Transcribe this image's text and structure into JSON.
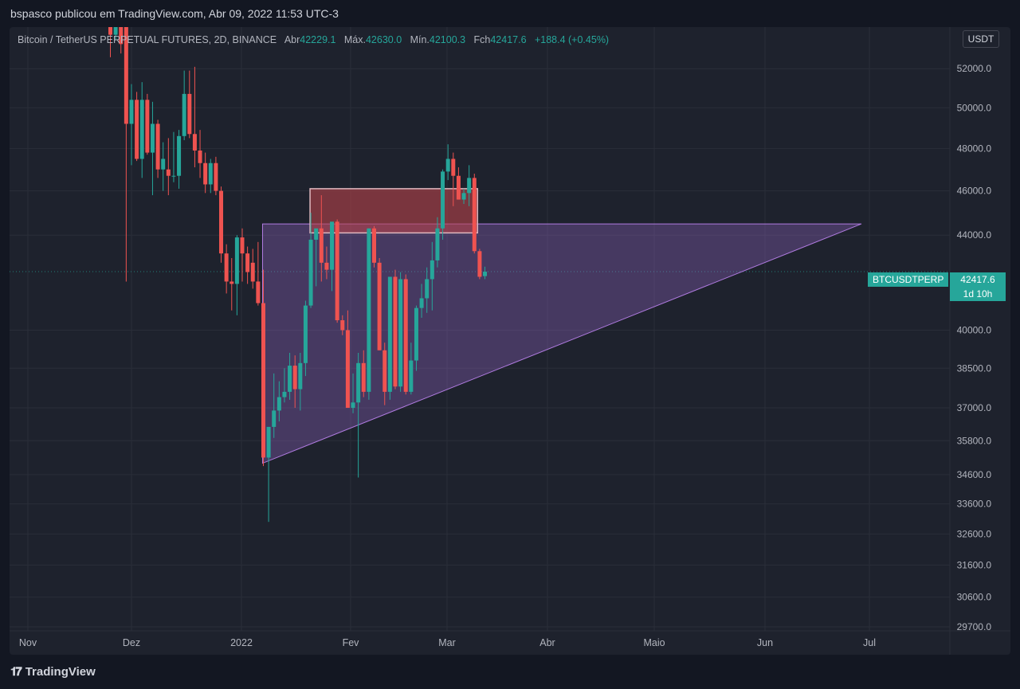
{
  "header": {
    "published": "bspasco publicou em TradingView.com, Abr 09, 2022 11:53 UTC-3"
  },
  "legend": {
    "symbol": "Bitcoin / TetherUS PERPETUAL FUTURES, 2D, BINANCE",
    "open_label": "Abr",
    "open": "42229.1",
    "high_label": "Máx.",
    "high": "42630.0",
    "low_label": "Mín.",
    "low": "42100.3",
    "close_label": "Fch",
    "close": "42417.6",
    "change": "+188.4 (+0.45%)"
  },
  "unit": "USDT",
  "price_tag": {
    "symbol": "BTCUSDTPERP",
    "price": "42417.6",
    "countdown": "1d 10h"
  },
  "footer": {
    "brand": "TradingView",
    "logo_icon": "tradingview-logo-icon"
  },
  "colors": {
    "up": "#26a69a",
    "down": "#ef5350",
    "zone": "#b8424a",
    "triangle": "#9b6bd1",
    "background": "#1e222d"
  },
  "chart_data": {
    "type": "candlestick",
    "timeframe": "2D",
    "x_axis_labels": [
      "Nov",
      "Dez",
      "2022",
      "Fev",
      "Mar",
      "Abr",
      "Maio",
      "Jun",
      "Jul"
    ],
    "y_axis_labels": [
      52000.0,
      50000.0,
      48000.0,
      46000.0,
      44000.0,
      40000.0,
      38500.0,
      37000.0,
      35800.0,
      34600.0,
      33600.0,
      32600.0,
      31600.0,
      30600.0,
      29700.0
    ],
    "y_scale": "log",
    "ylim": [
      29700,
      54000
    ],
    "grid": true,
    "candles": [
      {
        "o": 56500,
        "h": 58500,
        "l": 52600,
        "c": 53800
      },
      {
        "o": 53800,
        "h": 56800,
        "l": 53500,
        "c": 56500
      },
      {
        "o": 56500,
        "h": 59000,
        "l": 52800,
        "c": 53300
      },
      {
        "o": 55800,
        "h": 57000,
        "l": 42000,
        "c": 49200
      },
      {
        "o": 49200,
        "h": 51200,
        "l": 47200,
        "c": 50400
      },
      {
        "o": 50400,
        "h": 50800,
        "l": 47400,
        "c": 47500
      },
      {
        "o": 47500,
        "h": 51300,
        "l": 46600,
        "c": 50400
      },
      {
        "o": 50400,
        "h": 50700,
        "l": 47700,
        "c": 47800
      },
      {
        "o": 47800,
        "h": 50300,
        "l": 45800,
        "c": 49200
      },
      {
        "o": 49200,
        "h": 49400,
        "l": 46600,
        "c": 47000
      },
      {
        "o": 47000,
        "h": 48300,
        "l": 46000,
        "c": 47500
      },
      {
        "o": 47000,
        "h": 48500,
        "l": 45800,
        "c": 46700
      },
      {
        "o": 46700,
        "h": 48800,
        "l": 46400,
        "c": 46700
      },
      {
        "o": 46700,
        "h": 48900,
        "l": 46100,
        "c": 48600
      },
      {
        "o": 48600,
        "h": 51900,
        "l": 48400,
        "c": 50700
      },
      {
        "o": 50700,
        "h": 51900,
        "l": 48500,
        "c": 48700
      },
      {
        "o": 48700,
        "h": 52100,
        "l": 47100,
        "c": 47900
      },
      {
        "o": 47900,
        "h": 48900,
        "l": 46600,
        "c": 47300
      },
      {
        "o": 47300,
        "h": 47800,
        "l": 45900,
        "c": 46300
      },
      {
        "o": 46300,
        "h": 47500,
        "l": 45900,
        "c": 47300
      },
      {
        "o": 47300,
        "h": 47600,
        "l": 45800,
        "c": 46000
      },
      {
        "o": 46000,
        "h": 46200,
        "l": 42800,
        "c": 43200
      },
      {
        "o": 43200,
        "h": 43600,
        "l": 41500,
        "c": 42000
      },
      {
        "o": 42000,
        "h": 43000,
        "l": 40800,
        "c": 41900
      },
      {
        "o": 41900,
        "h": 44000,
        "l": 40600,
        "c": 43900
      },
      {
        "o": 43900,
        "h": 44300,
        "l": 42000,
        "c": 43200
      },
      {
        "o": 43200,
        "h": 43500,
        "l": 41900,
        "c": 42400
      },
      {
        "o": 42800,
        "h": 43400,
        "l": 41700,
        "c": 42000
      },
      {
        "o": 42000,
        "h": 43700,
        "l": 41000,
        "c": 41100
      },
      {
        "o": 41100,
        "h": 42500,
        "l": 34900,
        "c": 35200
      },
      {
        "o": 35200,
        "h": 36300,
        "l": 33000,
        "c": 36300
      },
      {
        "o": 36300,
        "h": 38300,
        "l": 35900,
        "c": 36900
      },
      {
        "o": 36900,
        "h": 38000,
        "l": 36500,
        "c": 37400
      },
      {
        "o": 37400,
        "h": 38500,
        "l": 37200,
        "c": 37600
      },
      {
        "o": 37600,
        "h": 39100,
        "l": 37300,
        "c": 38600
      },
      {
        "o": 38600,
        "h": 39000,
        "l": 37000,
        "c": 37700
      },
      {
        "o": 37700,
        "h": 39100,
        "l": 36900,
        "c": 38700
      },
      {
        "o": 38700,
        "h": 41200,
        "l": 38200,
        "c": 41000
      },
      {
        "o": 41000,
        "h": 45000,
        "l": 40900,
        "c": 43800
      },
      {
        "o": 43800,
        "h": 44200,
        "l": 41800,
        "c": 44300
      },
      {
        "o": 44300,
        "h": 45800,
        "l": 42000,
        "c": 42800
      },
      {
        "o": 42800,
        "h": 43500,
        "l": 42100,
        "c": 42500
      },
      {
        "o": 42500,
        "h": 44500,
        "l": 41600,
        "c": 44600
      },
      {
        "o": 44600,
        "h": 44700,
        "l": 40300,
        "c": 40400
      },
      {
        "o": 40400,
        "h": 40600,
        "l": 39800,
        "c": 40000
      },
      {
        "o": 40000,
        "h": 40800,
        "l": 37000,
        "c": 37000
      },
      {
        "o": 37000,
        "h": 38300,
        "l": 36800,
        "c": 37200
      },
      {
        "o": 37200,
        "h": 39100,
        "l": 34500,
        "c": 38700
      },
      {
        "o": 38700,
        "h": 39200,
        "l": 37400,
        "c": 37600
      },
      {
        "o": 37600,
        "h": 44300,
        "l": 37300,
        "c": 44300
      },
      {
        "o": 44300,
        "h": 44400,
        "l": 42600,
        "c": 42800
      },
      {
        "o": 42800,
        "h": 43000,
        "l": 39200,
        "c": 39200
      },
      {
        "o": 39200,
        "h": 39500,
        "l": 37100,
        "c": 37600
      },
      {
        "o": 37600,
        "h": 42200,
        "l": 37300,
        "c": 42200
      },
      {
        "o": 42200,
        "h": 42500,
        "l": 37700,
        "c": 37800
      },
      {
        "o": 37800,
        "h": 42400,
        "l": 37600,
        "c": 42100
      },
      {
        "o": 42100,
        "h": 42300,
        "l": 37500,
        "c": 37600
      },
      {
        "o": 37600,
        "h": 39500,
        "l": 37500,
        "c": 38800
      },
      {
        "o": 38800,
        "h": 41000,
        "l": 38400,
        "c": 40900
      },
      {
        "o": 40900,
        "h": 41900,
        "l": 40500,
        "c": 41300
      },
      {
        "o": 41300,
        "h": 42600,
        "l": 40700,
        "c": 42100
      },
      {
        "o": 42100,
        "h": 43700,
        "l": 40800,
        "c": 42900
      },
      {
        "o": 42900,
        "h": 44800,
        "l": 42600,
        "c": 44300
      },
      {
        "o": 44300,
        "h": 47000,
        "l": 43800,
        "c": 46900
      },
      {
        "o": 46900,
        "h": 48200,
        "l": 46500,
        "c": 47500
      },
      {
        "o": 47500,
        "h": 47800,
        "l": 45300,
        "c": 46700
      },
      {
        "o": 46700,
        "h": 47100,
        "l": 45600,
        "c": 45600
      },
      {
        "o": 45600,
        "h": 46100,
        "l": 45400,
        "c": 45900
      },
      {
        "o": 45900,
        "h": 47200,
        "l": 45300,
        "c": 46600
      },
      {
        "o": 46600,
        "h": 46800,
        "l": 43200,
        "c": 43300
      },
      {
        "o": 43300,
        "h": 43400,
        "l": 42100,
        "c": 42200
      },
      {
        "o": 42229.1,
        "h": 42630.0,
        "l": 42100.3,
        "c": 42417.6
      }
    ],
    "resistance_zone": {
      "low": 44100,
      "high": 46100
    },
    "ascending_triangle": {
      "top": 44500,
      "bottom_left": 35000
    },
    "last_price": 42417.6
  }
}
